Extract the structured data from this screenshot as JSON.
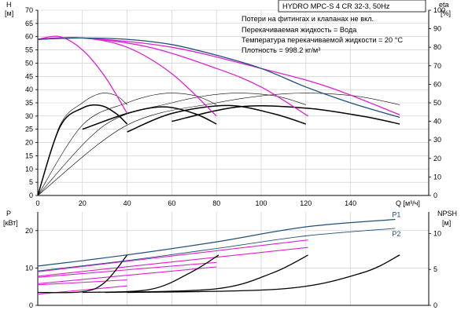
{
  "title": "HYDRO MPC-S 4 CR 32-3, 50Hz",
  "info": [
    "Потери на фитингах и клапанах не вкл.",
    "Перекачиваемая жидкость = Вода",
    "Температура перекачиваемой жидкости = 20 °C",
    "Плотность = 998.2 кг/м³"
  ],
  "colors": {
    "head_full": "#1f4e79",
    "head_reduced": "#e01fd0",
    "curves": "#000000",
    "grid": "#c8c8c8",
    "p1": "#1f4e79",
    "p2": "#1f4e79"
  },
  "chart_data": [
    {
      "type": "line",
      "name": "head_efficiency",
      "y_label": "H",
      "y_unit": "[м]",
      "y2_label": "eta",
      "y2_unit": "[%]",
      "x_label": "Q [м³/ч]",
      "x_ticks": [
        "0",
        "20",
        "40",
        "60",
        "80",
        "100",
        "120",
        "140"
      ],
      "xlim": [
        0,
        175
      ],
      "y_ticks": [
        "0",
        "5",
        "10",
        "15",
        "20",
        "25",
        "30",
        "35",
        "40",
        "45",
        "50",
        "55",
        "60",
        "65",
        "70"
      ],
      "ylim": [
        0,
        70
      ],
      "y2_ticks": [
        "0",
        "10",
        "20",
        "30",
        "40",
        "50",
        "60",
        "70",
        "80",
        "90",
        "100"
      ],
      "y2lim": [
        0,
        100
      ],
      "grid": true,
      "head_full_speed": [
        {
          "x": 0,
          "y": 59
        },
        {
          "x": 20,
          "y": 59.5
        },
        {
          "x": 40,
          "y": 59
        },
        {
          "x": 60,
          "y": 57
        },
        {
          "x": 80,
          "y": 53
        },
        {
          "x": 100,
          "y": 48
        },
        {
          "x": 120,
          "y": 41
        },
        {
          "x": 140,
          "y": 35
        },
        {
          "x": 162,
          "y": 29.5
        }
      ],
      "head_reduced_speed": [
        [
          {
            "x": 0,
            "y": 59
          },
          {
            "x": 10,
            "y": 60
          },
          {
            "x": 20,
            "y": 55
          },
          {
            "x": 30,
            "y": 45
          },
          {
            "x": 40,
            "y": 31
          }
        ],
        [
          {
            "x": 0,
            "y": 59
          },
          {
            "x": 20,
            "y": 59.5
          },
          {
            "x": 40,
            "y": 56
          },
          {
            "x": 60,
            "y": 46
          },
          {
            "x": 80,
            "y": 30
          }
        ],
        [
          {
            "x": 0,
            "y": 59
          },
          {
            "x": 20,
            "y": 59.5
          },
          {
            "x": 50,
            "y": 56
          },
          {
            "x": 80,
            "y": 48
          },
          {
            "x": 100,
            "y": 41
          },
          {
            "x": 121,
            "y": 30
          }
        ],
        [
          {
            "x": 0,
            "y": 59
          },
          {
            "x": 20,
            "y": 59.5
          },
          {
            "x": 60,
            "y": 56
          },
          {
            "x": 100,
            "y": 48
          },
          {
            "x": 130,
            "y": 41
          },
          {
            "x": 162,
            "y": 30.5
          }
        ]
      ],
      "head_composite": [
        [
          {
            "x": 0,
            "y": 0
          },
          {
            "x": 10,
            "y": 26
          },
          {
            "x": 20,
            "y": 33
          },
          {
            "x": 28,
            "y": 34
          },
          {
            "x": 35,
            "y": 31
          },
          {
            "x": 40,
            "y": 27
          }
        ],
        [
          {
            "x": 20,
            "y": 25
          },
          {
            "x": 40,
            "y": 31
          },
          {
            "x": 56,
            "y": 33.5
          },
          {
            "x": 70,
            "y": 31
          },
          {
            "x": 80,
            "y": 27
          }
        ],
        [
          {
            "x": 40,
            "y": 24
          },
          {
            "x": 60,
            "y": 31
          },
          {
            "x": 85,
            "y": 34
          },
          {
            "x": 105,
            "y": 31
          },
          {
            "x": 120,
            "y": 27
          }
        ],
        [
          {
            "x": 60,
            "y": 28
          },
          {
            "x": 90,
            "y": 33.5
          },
          {
            "x": 120,
            "y": 33
          },
          {
            "x": 145,
            "y": 30
          },
          {
            "x": 162,
            "y": 27
          }
        ]
      ],
      "efficiency": [
        [
          {
            "x": 0,
            "y": 0
          },
          {
            "x": 10,
            "y": 38
          },
          {
            "x": 20,
            "y": 50
          },
          {
            "x": 28,
            "y": 55
          },
          {
            "x": 35,
            "y": 54
          },
          {
            "x": 40,
            "y": 49
          }
        ],
        [
          {
            "x": 0,
            "y": 0
          },
          {
            "x": 20,
            "y": 38
          },
          {
            "x": 40,
            "y": 50
          },
          {
            "x": 56,
            "y": 55
          },
          {
            "x": 70,
            "y": 54
          },
          {
            "x": 80,
            "y": 49
          }
        ],
        [
          {
            "x": 0,
            "y": 0
          },
          {
            "x": 30,
            "y": 38
          },
          {
            "x": 60,
            "y": 50
          },
          {
            "x": 84,
            "y": 55
          },
          {
            "x": 105,
            "y": 54
          },
          {
            "x": 120,
            "y": 49
          }
        ],
        [
          {
            "x": 0,
            "y": 0
          },
          {
            "x": 40,
            "y": 38
          },
          {
            "x": 80,
            "y": 50
          },
          {
            "x": 112,
            "y": 55
          },
          {
            "x": 140,
            "y": 54
          },
          {
            "x": 162,
            "y": 49
          }
        ]
      ]
    },
    {
      "type": "line",
      "name": "power_npsh",
      "y_label": "P",
      "y_unit": "[кВт]",
      "y2_label": "NPSH",
      "y2_unit": "[м]",
      "x_ticks": [
        "0",
        "20",
        "40",
        "60",
        "80",
        "100",
        "120",
        "140"
      ],
      "xlim": [
        0,
        175
      ],
      "y_ticks": [
        "0",
        "10",
        "20"
      ],
      "ylim": [
        0,
        25
      ],
      "y2_ticks": [
        "0",
        "5",
        "10"
      ],
      "y2lim": [
        0,
        13
      ],
      "grid": true,
      "series": [
        {
          "name": "P1",
          "values": [
            {
              "x": 0,
              "y": 10.5
            },
            {
              "x": 40,
              "y": 13.5
            },
            {
              "x": 80,
              "y": 17
            },
            {
              "x": 120,
              "y": 21
            },
            {
              "x": 160,
              "y": 23
            }
          ]
        },
        {
          "name": "P2",
          "values": [
            {
              "x": 0,
              "y": 9.2
            },
            {
              "x": 40,
              "y": 12.0
            },
            {
              "x": 80,
              "y": 15.2
            },
            {
              "x": 120,
              "y": 18.6
            },
            {
              "x": 160,
              "y": 20.6
            }
          ]
        }
      ],
      "power_reduced": [
        [
          {
            "x": 0,
            "y": 5.5
          },
          {
            "x": 40,
            "y": 6.8
          }
        ],
        [
          {
            "x": 0,
            "y": 3.0
          },
          {
            "x": 40,
            "y": 5.2
          }
        ],
        [
          {
            "x": 0,
            "y": 7.5
          },
          {
            "x": 80,
            "y": 11.5
          }
        ],
        [
          {
            "x": 0,
            "y": 5.8
          },
          {
            "x": 80,
            "y": 10.3
          }
        ],
        [
          {
            "x": 0,
            "y": 9.0
          },
          {
            "x": 121,
            "y": 17.5
          }
        ],
        [
          {
            "x": 0,
            "y": 7.8
          },
          {
            "x": 121,
            "y": 15.5
          }
        ]
      ],
      "npsh": [
        [
          {
            "x": 0,
            "y": 1.8
          },
          {
            "x": 20,
            "y": 1.9
          },
          {
            "x": 30,
            "y": 3.2
          },
          {
            "x": 40,
            "y": 7.0
          }
        ],
        [
          {
            "x": 20,
            "y": 1.8
          },
          {
            "x": 50,
            "y": 2.2
          },
          {
            "x": 68,
            "y": 4.5
          },
          {
            "x": 81,
            "y": 7.0
          }
        ],
        [
          {
            "x": 30,
            "y": 1.8
          },
          {
            "x": 80,
            "y": 2.3
          },
          {
            "x": 105,
            "y": 4.5
          },
          {
            "x": 121,
            "y": 7.0
          }
        ],
        [
          {
            "x": 40,
            "y": 1.8
          },
          {
            "x": 110,
            "y": 2.3
          },
          {
            "x": 145,
            "y": 4.5
          },
          {
            "x": 162,
            "y": 7.0
          }
        ]
      ]
    }
  ]
}
